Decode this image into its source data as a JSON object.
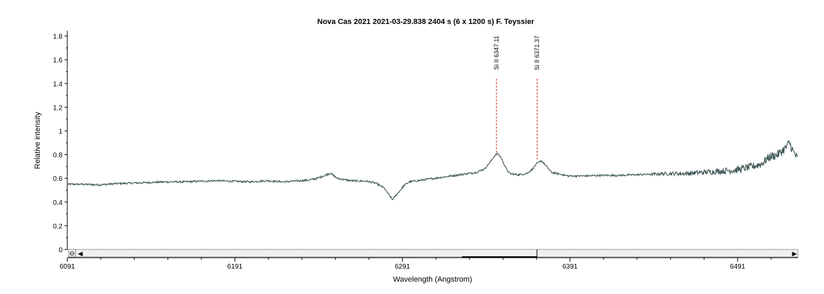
{
  "chart_data": {
    "type": "line",
    "title": "Nova Cas 2021  2021-03-29.838  2404 s (6 x 1200 s)  F. Teyssier",
    "xlabel": "Wavelength (Angstrom)",
    "ylabel": "Relative intensity",
    "xlim": [
      6091,
      6527
    ],
    "ylim": [
      0,
      1.85
    ],
    "x_ticks": [
      6091,
      6191,
      6291,
      6391,
      6491
    ],
    "y_ticks": [
      0,
      0.2,
      0.4,
      0.6,
      0.8,
      1,
      1.2,
      1.4,
      1.6,
      1.8
    ],
    "grid": false,
    "line_color": "#3d5656",
    "marker_color": "#cc2222",
    "series": [
      {
        "x": [
          6091,
          6100,
          6110,
          6120,
          6130,
          6140,
          6150,
          6160,
          6170,
          6180,
          6190,
          6200,
          6210,
          6220,
          6230,
          6235,
          6240,
          6244,
          6248,
          6252,
          6260,
          6270,
          6275,
          6280,
          6283,
          6285,
          6288,
          6292,
          6295,
          6300,
          6310,
          6320,
          6330,
          6335,
          6340,
          6343,
          6346,
          6348,
          6350,
          6353,
          6355,
          6360,
          6365,
          6368,
          6371,
          6374,
          6377,
          6380,
          6390,
          6400,
          6410,
          6420,
          6430,
          6440,
          6450,
          6460,
          6470,
          6480,
          6490,
          6500,
          6505,
          6510,
          6515,
          6520,
          6522,
          6524,
          6527
        ],
        "y": [
          0.55,
          0.55,
          0.545,
          0.555,
          0.56,
          0.565,
          0.57,
          0.57,
          0.575,
          0.58,
          0.575,
          0.57,
          0.58,
          0.57,
          0.58,
          0.585,
          0.6,
          0.62,
          0.645,
          0.6,
          0.58,
          0.575,
          0.56,
          0.52,
          0.46,
          0.42,
          0.47,
          0.54,
          0.57,
          0.58,
          0.6,
          0.62,
          0.64,
          0.65,
          0.68,
          0.73,
          0.79,
          0.81,
          0.77,
          0.68,
          0.64,
          0.63,
          0.64,
          0.67,
          0.72,
          0.75,
          0.7,
          0.65,
          0.62,
          0.62,
          0.625,
          0.625,
          0.63,
          0.635,
          0.64,
          0.64,
          0.65,
          0.66,
          0.67,
          0.7,
          0.72,
          0.78,
          0.8,
          0.86,
          0.9,
          0.83,
          0.76
        ]
      }
    ],
    "annotations": [
      {
        "label": "Si II 6347.11",
        "x": 6347.11,
        "y_top": 1.44,
        "y_bottom": 0.8
      },
      {
        "label": "Si II 6371.37",
        "x": 6371.37,
        "y_top": 1.44,
        "y_bottom": 0.76
      }
    ]
  },
  "scrollbar": {
    "zoom_symbol": "⊖",
    "left_arrow": "◀",
    "right_arrow": "▶"
  }
}
